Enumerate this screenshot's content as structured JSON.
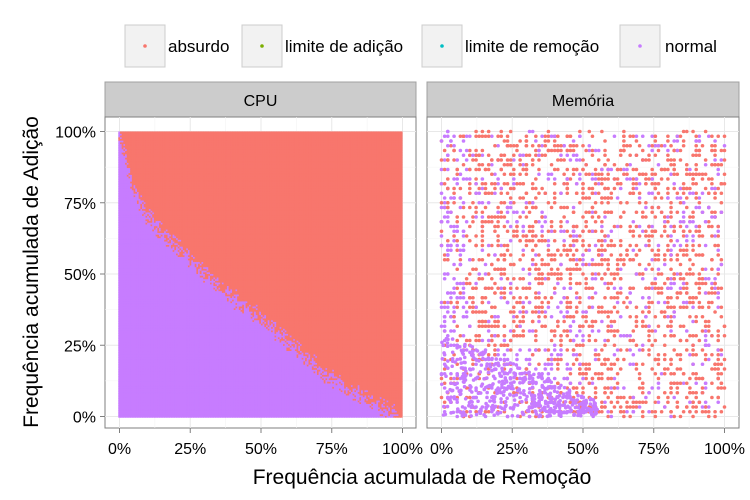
{
  "chart_data": {
    "type": "scatter",
    "xlabel": "Frequência acumulada de Remoção",
    "ylabel": "Frequência acumulada de Adição",
    "x_ticks": [
      "0%",
      "25%",
      "50%",
      "75%",
      "100%"
    ],
    "y_ticks": [
      "0%",
      "25%",
      "50%",
      "75%",
      "100%"
    ],
    "xlim": [
      0,
      1
    ],
    "ylim": [
      0,
      1
    ],
    "grid": true,
    "legend_position": "top",
    "legend": [
      {
        "name": "absurdo",
        "color": "#F8766D"
      },
      {
        "name": "limite de adição",
        "color": "#7CAE00"
      },
      {
        "name": "limite de remoção",
        "color": "#00BFC4"
      },
      {
        "name": "normal",
        "color": "#C77CFF"
      }
    ],
    "panels": [
      {
        "title": "CPU",
        "description_series": [
          {
            "name": "absurdo",
            "region": "dense, covers upper-right of frontier"
          },
          {
            "name": "normal",
            "boundary": [
              [
                0,
                1.0
              ],
              [
                0.05,
                0.8
              ],
              [
                0.1,
                0.7
              ],
              [
                0.2,
                0.6
              ],
              [
                0.3,
                0.5
              ],
              [
                0.4,
                0.42
              ],
              [
                0.5,
                0.35
              ],
              [
                0.6,
                0.26
              ],
              [
                0.7,
                0.17
              ],
              [
                0.8,
                0.1
              ],
              [
                0.9,
                0.05
              ],
              [
                1.0,
                0.0
              ]
            ]
          }
        ]
      },
      {
        "title": "Memória",
        "description_series": [
          {
            "name": "absurdo",
            "region": "scattered grid across whole panel"
          },
          {
            "name": "normal",
            "region": "concentrated lower-left, sparse elsewhere"
          }
        ]
      }
    ]
  }
}
